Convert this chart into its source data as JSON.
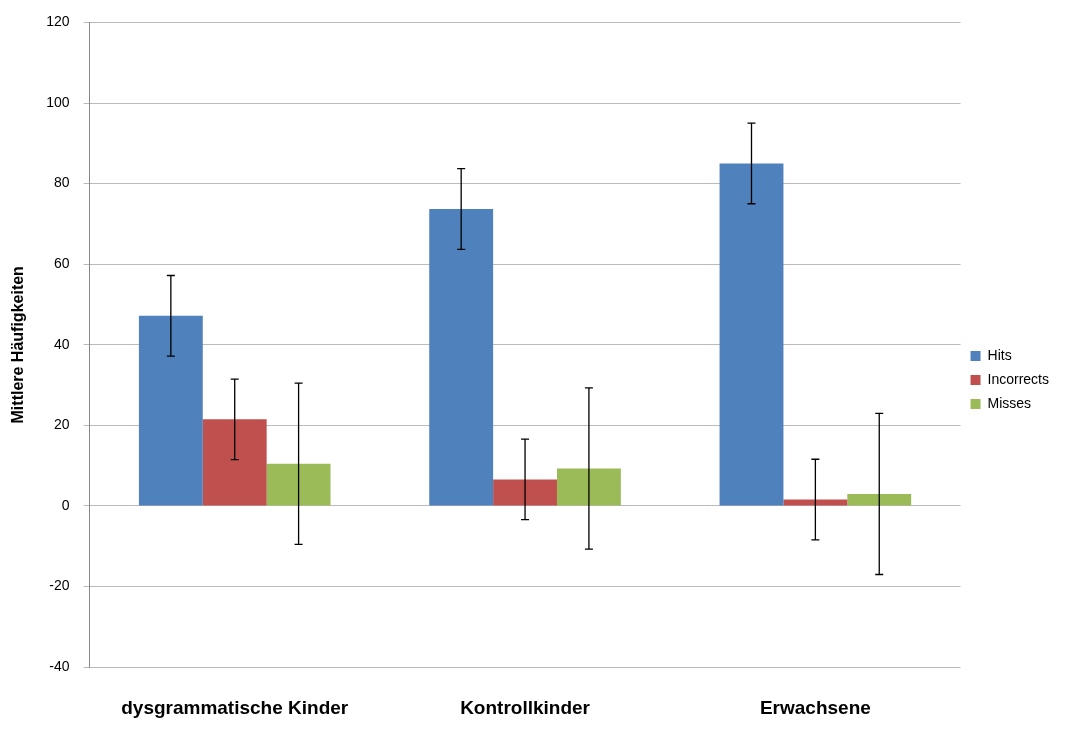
{
  "chart_data": {
    "type": "bar",
    "ylabel": "Mittlere Häufigkeiten",
    "categories": [
      "dysgrammatische Kinder",
      "Kontrollkinder",
      "Erwachsene"
    ],
    "series": [
      {
        "name": "Hits",
        "color": "#4f81bd",
        "values": [
          47.2,
          73.7,
          85
        ],
        "errors": [
          10,
          10,
          10
        ]
      },
      {
        "name": "Incorrects",
        "color": "#c0504d",
        "values": [
          21.5,
          6.6,
          1.6
        ],
        "errors": [
          10,
          10,
          10
        ]
      },
      {
        "name": "Misses",
        "color": "#9bbb59",
        "values": [
          10.5,
          9.3,
          3
        ],
        "errors": [
          20,
          20,
          20
        ]
      }
    ],
    "ylim": [
      -40,
      120
    ],
    "yticks": [
      -40,
      -20,
      0,
      20,
      40,
      60,
      80,
      100,
      120
    ],
    "grid": "y",
    "legend": "right"
  }
}
